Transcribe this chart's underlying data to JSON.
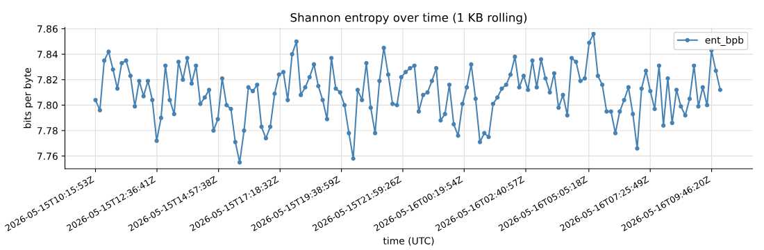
{
  "chart_data": {
    "type": "line",
    "title": "Shannon entropy over time (1 KB rolling)",
    "xlabel": "time (UTC)",
    "ylabel": "bits per byte",
    "x": [
      "2026-05-15T10:16",
      "2026-05-15T10:26",
      "2026-05-15T10:36",
      "2026-05-15T10:46",
      "2026-05-15T10:56",
      "2026-05-15T11:06",
      "2026-05-15T11:16",
      "2026-05-15T11:26",
      "2026-05-15T11:36",
      "2026-05-15T11:46",
      "2026-05-15T11:56",
      "2026-05-15T12:06",
      "2026-05-15T12:16",
      "2026-05-15T12:26",
      "2026-05-15T12:36",
      "2026-05-15T12:46",
      "2026-05-15T12:56",
      "2026-05-15T13:06",
      "2026-05-15T13:16",
      "2026-05-15T13:26",
      "2026-05-15T13:36",
      "2026-05-15T13:46",
      "2026-05-15T13:56",
      "2026-05-15T14:06",
      "2026-05-15T14:16",
      "2026-05-15T14:26",
      "2026-05-15T14:36",
      "2026-05-15T14:46",
      "2026-05-15T14:56",
      "2026-05-15T15:06",
      "2026-05-15T15:16",
      "2026-05-15T15:26",
      "2026-05-15T15:36",
      "2026-05-15T15:46",
      "2026-05-15T15:56",
      "2026-05-15T16:06",
      "2026-05-15T16:16",
      "2026-05-15T16:26",
      "2026-05-15T16:36",
      "2026-05-15T16:46",
      "2026-05-15T16:56",
      "2026-05-15T17:06",
      "2026-05-15T17:16",
      "2026-05-15T17:26",
      "2026-05-15T17:36",
      "2026-05-15T17:46",
      "2026-05-15T17:56",
      "2026-05-15T18:06",
      "2026-05-15T18:16",
      "2026-05-15T18:26",
      "2026-05-15T18:36",
      "2026-05-15T18:46",
      "2026-05-15T18:56",
      "2026-05-15T19:06",
      "2026-05-15T19:16",
      "2026-05-15T19:26",
      "2026-05-15T19:36",
      "2026-05-15T19:46",
      "2026-05-15T19:56",
      "2026-05-15T20:06",
      "2026-05-15T20:16",
      "2026-05-15T20:26",
      "2026-05-15T20:36",
      "2026-05-15T20:46",
      "2026-05-15T20:56",
      "2026-05-15T21:06",
      "2026-05-15T21:16",
      "2026-05-15T21:26",
      "2026-05-15T21:36",
      "2026-05-15T21:46",
      "2026-05-15T21:56",
      "2026-05-15T22:06",
      "2026-05-15T22:16",
      "2026-05-15T22:26",
      "2026-05-15T22:36",
      "2026-05-15T22:46",
      "2026-05-15T22:56",
      "2026-05-15T23:06",
      "2026-05-15T23:16",
      "2026-05-15T23:26",
      "2026-05-15T23:36",
      "2026-05-15T23:46",
      "2026-05-15T23:56",
      "2026-05-16T00:06",
      "2026-05-16T00:16",
      "2026-05-16T00:26",
      "2026-05-16T00:36",
      "2026-05-16T00:46",
      "2026-05-16T00:56",
      "2026-05-16T01:06",
      "2026-05-16T01:16",
      "2026-05-16T01:26",
      "2026-05-16T01:36",
      "2026-05-16T01:46",
      "2026-05-16T01:56",
      "2026-05-16T02:06",
      "2026-05-16T02:16",
      "2026-05-16T02:26",
      "2026-05-16T02:36",
      "2026-05-16T02:46",
      "2026-05-16T02:56",
      "2026-05-16T03:06",
      "2026-05-16T03:16",
      "2026-05-16T03:26",
      "2026-05-16T03:36",
      "2026-05-16T03:46",
      "2026-05-16T03:56",
      "2026-05-16T04:06",
      "2026-05-16T04:16",
      "2026-05-16T04:26",
      "2026-05-16T04:36",
      "2026-05-16T04:46",
      "2026-05-16T04:56",
      "2026-05-16T05:06",
      "2026-05-16T05:16",
      "2026-05-16T05:26",
      "2026-05-16T05:36",
      "2026-05-16T05:46",
      "2026-05-16T05:56",
      "2026-05-16T06:06",
      "2026-05-16T06:16",
      "2026-05-16T06:26",
      "2026-05-16T06:36",
      "2026-05-16T06:46",
      "2026-05-16T06:56",
      "2026-05-16T07:06",
      "2026-05-16T07:16",
      "2026-05-16T07:26",
      "2026-05-16T07:36",
      "2026-05-16T07:46",
      "2026-05-16T07:56",
      "2026-05-16T08:06",
      "2026-05-16T08:16",
      "2026-05-16T08:26",
      "2026-05-16T08:36",
      "2026-05-16T08:46",
      "2026-05-16T08:56",
      "2026-05-16T09:06",
      "2026-05-16T09:16",
      "2026-05-16T09:26",
      "2026-05-16T09:36",
      "2026-05-16T09:46",
      "2026-05-16T09:56",
      "2026-05-16T10:06"
    ],
    "series": [
      {
        "name": "ent_bpb",
        "color": "#4682b4",
        "values": [
          7.804,
          7.796,
          7.835,
          7.842,
          7.828,
          7.813,
          7.833,
          7.835,
          7.823,
          7.799,
          7.819,
          7.807,
          7.819,
          7.804,
          7.772,
          7.79,
          7.831,
          7.804,
          7.793,
          7.834,
          7.82,
          7.837,
          7.817,
          7.831,
          7.801,
          7.806,
          7.812,
          7.78,
          7.789,
          7.821,
          7.8,
          7.797,
          7.771,
          7.755,
          7.78,
          7.814,
          7.811,
          7.816,
          7.783,
          7.774,
          7.783,
          7.809,
          7.824,
          7.826,
          7.804,
          7.84,
          7.85,
          7.808,
          7.814,
          7.822,
          7.832,
          7.815,
          7.804,
          7.789,
          7.837,
          7.813,
          7.81,
          7.8,
          7.778,
          7.758,
          7.812,
          7.804,
          7.833,
          7.798,
          7.778,
          7.819,
          7.845,
          7.824,
          7.801,
          7.8,
          7.822,
          7.826,
          7.829,
          7.831,
          7.795,
          7.808,
          7.81,
          7.819,
          7.829,
          7.788,
          7.793,
          7.816,
          7.785,
          7.776,
          7.801,
          7.814,
          7.832,
          7.805,
          7.771,
          7.778,
          7.775,
          7.801,
          7.806,
          7.813,
          7.816,
          7.824,
          7.838,
          7.814,
          7.823,
          7.812,
          7.835,
          7.814,
          7.836,
          7.821,
          7.81,
          7.825,
          7.798,
          7.808,
          7.792,
          7.837,
          7.834,
          7.819,
          7.821,
          7.849,
          7.856,
          7.823,
          7.816,
          7.795,
          7.795,
          7.778,
          7.795,
          7.804,
          7.814,
          7.793,
          7.766,
          7.813,
          7.827,
          7.811,
          7.797,
          7.831,
          7.784,
          7.821,
          7.786,
          7.812,
          7.799,
          7.792,
          7.805,
          7.831,
          7.799,
          7.814,
          7.8,
          7.843,
          7.827,
          7.812
        ]
      }
    ],
    "xlim": [
      "2026-05-15T09:06",
      "2026-05-16T11:20"
    ],
    "xticks": [
      {
        "value": "2026-05-15T10:15:53",
        "label": "2026-05-15T10:15:53Z"
      },
      {
        "value": "2026-05-15T12:36:41",
        "label": "2026-05-15T12:36:41Z"
      },
      {
        "value": "2026-05-15T14:57:38",
        "label": "2026-05-15T14:57:38Z"
      },
      {
        "value": "2026-05-15T17:18:32",
        "label": "2026-05-15T17:18:32Z"
      },
      {
        "value": "2026-05-15T19:38:59",
        "label": "2026-05-15T19:38:59Z"
      },
      {
        "value": "2026-05-15T21:59:26",
        "label": "2026-05-15T21:59:26Z"
      },
      {
        "value": "2026-05-16T00:19:54",
        "label": "2026-05-16T00:19:54Z"
      },
      {
        "value": "2026-05-16T02:40:57",
        "label": "2026-05-16T02:40:57Z"
      },
      {
        "value": "2026-05-16T05:05:18",
        "label": "2026-05-16T05:05:18Z"
      },
      {
        "value": "2026-05-16T07:25:49",
        "label": "2026-05-16T07:25:49Z"
      },
      {
        "value": "2026-05-16T09:46:20",
        "label": "2026-05-16T09:46:20Z"
      }
    ],
    "ylim": [
      7.75,
      7.861
    ],
    "yticks": [
      {
        "value": 7.76,
        "label": "7.76"
      },
      {
        "value": 7.78,
        "label": "7.78"
      },
      {
        "value": 7.8,
        "label": "7.80"
      },
      {
        "value": 7.82,
        "label": "7.82"
      },
      {
        "value": 7.84,
        "label": "7.84"
      },
      {
        "value": 7.86,
        "label": "7.86"
      }
    ],
    "grid": true,
    "legend": "top right",
    "marker": "circle",
    "line_style": "solid"
  }
}
